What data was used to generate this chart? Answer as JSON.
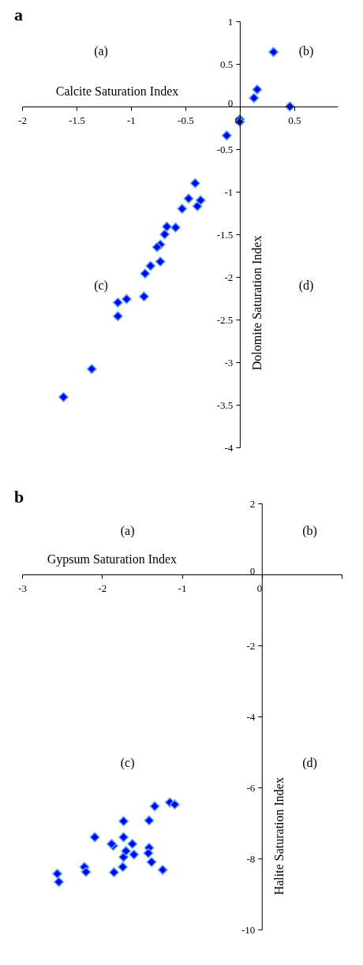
{
  "chart_data": [
    {
      "type": "scatter",
      "title": "a",
      "xlabel": "Calcite Saturation Index",
      "ylabel": "Dolomite Saturation Index",
      "annotations": [
        "(a)",
        "(b)",
        "(c)",
        "(d)"
      ],
      "x": [
        0.31,
        0.16,
        0.13,
        0.46,
        0.0,
        0.0,
        -0.12,
        -0.41,
        -0.47,
        -0.39,
        -0.36,
        -0.53,
        -0.67,
        -0.59,
        -0.69,
        -0.73,
        -0.76,
        -0.73,
        -0.82,
        -0.87,
        -0.88,
        -1.04,
        -1.12,
        -1.12,
        -1.36,
        -1.62
      ],
      "values": [
        0.64,
        0.2,
        0.1,
        0.0,
        -0.15,
        -0.18,
        -0.34,
        -0.9,
        -1.08,
        -1.17,
        -1.1,
        -1.2,
        -1.41,
        -1.42,
        -1.5,
        -1.62,
        -1.65,
        -1.82,
        -1.87,
        -1.96,
        -2.23,
        -2.26,
        -2.3,
        -2.46,
        -3.08,
        -3.41
      ],
      "color": "#0000ff",
      "marker": "diamond",
      "xlim": [
        -2,
        0.9
      ],
      "xticks": [
        -2,
        -1.5,
        -1,
        -0.5,
        0,
        0.5
      ],
      "ylim": [
        -4,
        1
      ],
      "yticks": [
        -4,
        -3.5,
        -3,
        -2.5,
        -2,
        -1.5,
        -1,
        -0.5,
        0,
        0.5,
        1
      ],
      "grid": false
    },
    {
      "type": "scatter",
      "title": "b",
      "xlabel": "Gypsum Saturation Index",
      "ylabel": "Halite Saturation Index",
      "annotations": [
        "(a)",
        "(b)",
        "(c)",
        "(d)"
      ],
      "x": [
        -1.15,
        -1.09,
        -1.34,
        -1.41,
        -1.73,
        -2.09,
        -1.73,
        -1.86,
        -1.62,
        -2.56,
        -2.54,
        -2.22,
        -2.2,
        -1.85,
        -1.74,
        -1.73,
        -1.7,
        -1.6,
        -1.88,
        -1.41,
        -1.42,
        -1.38,
        -1.24
      ],
      "values": [
        -6.42,
        -6.48,
        -6.53,
        -6.93,
        -6.95,
        -7.4,
        -7.4,
        -7.64,
        -7.59,
        -8.43,
        -8.66,
        -8.24,
        -8.38,
        -8.39,
        -8.24,
        -7.96,
        -7.79,
        -7.89,
        -7.59,
        -7.7,
        -7.85,
        -8.1,
        -8.32
      ],
      "color": "#0000ff",
      "marker": "diamond",
      "xlim": [
        -3,
        1
      ],
      "xticks": [
        -3,
        -2,
        -1,
        0,
        {
          "value": 1,
          "label": null
        }
      ],
      "ylim": [
        -10,
        2
      ],
      "yticks": [
        -10,
        -8,
        -6,
        -4,
        -2,
        0,
        2
      ],
      "grid": false
    }
  ]
}
